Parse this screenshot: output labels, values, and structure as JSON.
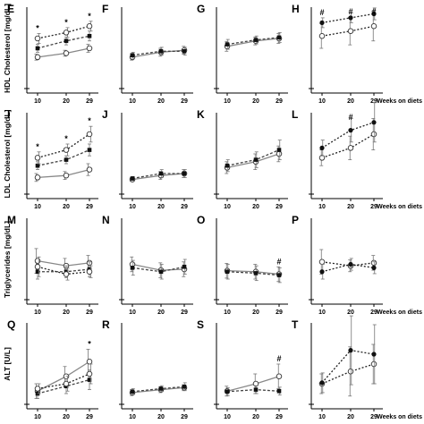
{
  "figure": {
    "x_axis_label": "Weeks on diets",
    "x_ticks": [
      "10",
      "20",
      "29"
    ],
    "series_styles": {
      "a": {
        "line": "#888888",
        "dash": "none",
        "marker": "circle-open"
      },
      "b": {
        "line": "#444444",
        "dash": "3,2",
        "marker": "square-filled"
      },
      "c": {
        "line": "#222222",
        "dash": "2,2",
        "marker": "circle-open"
      },
      "d": {
        "line": "#222222",
        "dash": "2,2",
        "marker": "circle-filled"
      }
    }
  },
  "chart_data": [
    {
      "panel": "E",
      "row": "HDL Cholesterol [mg/dL]",
      "type": "line",
      "x": [
        10,
        20,
        29
      ],
      "ylim": [
        0,
        160
      ],
      "series": [
        {
          "style": "a",
          "values": [
            62,
            70,
            80
          ],
          "err": [
            6,
            6,
            8
          ]
        },
        {
          "style": "b",
          "values": [
            80,
            95,
            105
          ],
          "err": [
            8,
            8,
            10
          ]
        },
        {
          "style": "c",
          "values": [
            100,
            112,
            125
          ],
          "err": [
            10,
            10,
            10
          ]
        }
      ],
      "annotations": [
        {
          "x": 10,
          "text": "*"
        },
        {
          "x": 20,
          "text": "*"
        },
        {
          "x": 29,
          "text": "*"
        }
      ]
    },
    {
      "panel": "F",
      "row": "HDL Cholesterol [mg/dL]",
      "type": "line",
      "x": [
        10,
        20,
        29
      ],
      "ylim": [
        0,
        160
      ],
      "series": [
        {
          "style": "a",
          "values": [
            62,
            72,
            76
          ],
          "err": [
            6,
            8,
            8
          ]
        },
        {
          "style": "b",
          "values": [
            66,
            74,
            74
          ],
          "err": [
            6,
            8,
            8
          ]
        }
      ],
      "annotations": []
    },
    {
      "panel": "G",
      "row": "HDL Cholesterol [mg/dL]",
      "type": "line",
      "x": [
        10,
        20,
        29
      ],
      "ylim": [
        0,
        160
      ],
      "series": [
        {
          "style": "a",
          "values": [
            84,
            95,
            100
          ],
          "err": [
            10,
            8,
            10
          ]
        },
        {
          "style": "b",
          "values": [
            88,
            97,
            102
          ],
          "err": [
            10,
            8,
            10
          ]
        }
      ],
      "annotations": []
    },
    {
      "panel": "H",
      "row": "HDL Cholesterol [mg/dL]",
      "type": "line",
      "x": [
        10,
        20,
        29
      ],
      "ylim": [
        0,
        160
      ],
      "series": [
        {
          "style": "c",
          "values": [
            105,
            115,
            125
          ],
          "err": [
            25,
            28,
            30
          ]
        },
        {
          "style": "d",
          "values": [
            132,
            142,
            150
          ],
          "err": [
            10,
            10,
            12
          ]
        }
      ],
      "annotations": [
        {
          "x": 10,
          "text": "#"
        },
        {
          "x": 20,
          "text": "#"
        },
        {
          "x": 29,
          "text": "#"
        }
      ]
    },
    {
      "panel": "I",
      "row": "LDL Cholesterol [mg/dL]",
      "type": "line",
      "x": [
        10,
        20,
        29
      ],
      "ylim": [
        0,
        40
      ],
      "series": [
        {
          "style": "a",
          "values": [
            8,
            9,
            12
          ],
          "err": [
            2,
            2,
            3
          ]
        },
        {
          "style": "b",
          "values": [
            14,
            17,
            22
          ],
          "err": [
            2,
            2,
            3
          ]
        },
        {
          "style": "c",
          "values": [
            18,
            22,
            30
          ],
          "err": [
            3,
            3,
            4
          ]
        }
      ],
      "annotations": [
        {
          "x": 10,
          "text": "*"
        },
        {
          "x": 20,
          "text": "*"
        },
        {
          "x": 29,
          "text": "*"
        }
      ]
    },
    {
      "panel": "J",
      "row": "LDL Cholesterol [mg/dL]",
      "type": "line",
      "x": [
        10,
        20,
        29
      ],
      "ylim": [
        0,
        40
      ],
      "series": [
        {
          "style": "a",
          "values": [
            7,
            9,
            10
          ],
          "err": [
            1,
            2,
            2
          ]
        },
        {
          "style": "b",
          "values": [
            7.5,
            10,
            10
          ],
          "err": [
            1,
            2,
            2
          ]
        }
      ],
      "annotations": []
    },
    {
      "panel": "K",
      "row": "LDL Cholesterol [mg/dL]",
      "type": "line",
      "x": [
        10,
        20,
        29
      ],
      "ylim": [
        0,
        40
      ],
      "series": [
        {
          "style": "a",
          "values": [
            13,
            16,
            20
          ],
          "err": [
            3,
            4,
            4
          ]
        },
        {
          "style": "b",
          "values": [
            14,
            17,
            22
          ],
          "err": [
            3,
            4,
            5
          ]
        }
      ],
      "annotations": []
    },
    {
      "panel": "L",
      "row": "LDL Cholesterol [mg/dL]",
      "type": "line",
      "x": [
        10,
        20,
        29
      ],
      "ylim": [
        0,
        40
      ],
      "series": [
        {
          "style": "c",
          "values": [
            18,
            23,
            30
          ],
          "err": [
            4,
            6,
            8
          ]
        },
        {
          "style": "d",
          "values": [
            23,
            32,
            36
          ],
          "err": [
            4,
            6,
            10
          ]
        }
      ],
      "annotations": [
        {
          "x": 20,
          "text": "#"
        }
      ]
    },
    {
      "panel": "M",
      "row": "Triglycerides [mg/dL]",
      "type": "line",
      "x": [
        10,
        20,
        29
      ],
      "ylim": [
        0,
        160
      ],
      "series": [
        {
          "style": "a",
          "values": [
            77,
            67,
            73
          ],
          "err": [
            25,
            15,
            15
          ]
        },
        {
          "style": "b",
          "values": [
            55,
            55,
            60
          ],
          "err": [
            15,
            12,
            15
          ]
        },
        {
          "style": "c",
          "values": [
            65,
            50,
            55
          ],
          "err": [
            20,
            12,
            12
          ]
        }
      ],
      "annotations": []
    },
    {
      "panel": "N",
      "row": "Triglycerides [mg/dL]",
      "type": "line",
      "x": [
        10,
        20,
        29
      ],
      "ylim": [
        0,
        160
      ],
      "series": [
        {
          "style": "a",
          "values": [
            70,
            58,
            60
          ],
          "err": [
            15,
            15,
            15
          ]
        },
        {
          "style": "b",
          "values": [
            63,
            55,
            65
          ],
          "err": [
            15,
            15,
            15
          ]
        }
      ],
      "annotations": []
    },
    {
      "panel": "O",
      "row": "Triglycerides [mg/dL]",
      "type": "line",
      "x": [
        10,
        20,
        29
      ],
      "ylim": [
        0,
        160
      ],
      "series": [
        {
          "style": "a",
          "values": [
            57,
            55,
            50
          ],
          "err": [
            15,
            15,
            15
          ]
        },
        {
          "style": "b",
          "values": [
            55,
            52,
            48
          ],
          "err": [
            15,
            15,
            15
          ]
        }
      ],
      "annotations": [
        {
          "x": 29,
          "text": "#"
        }
      ]
    },
    {
      "panel": "P",
      "row": "Triglycerides [mg/dL]",
      "type": "line",
      "x": [
        10,
        20,
        29
      ],
      "ylim": [
        0,
        160
      ],
      "series": [
        {
          "style": "c",
          "values": [
            75,
            67,
            73
          ],
          "err": [
            25,
            12,
            15
          ]
        },
        {
          "style": "d",
          "values": [
            55,
            70,
            63
          ],
          "err": [
            15,
            12,
            12
          ]
        }
      ],
      "annotations": []
    },
    {
      "panel": "Q",
      "row": "ALT [U/L]",
      "type": "line",
      "x": [
        10,
        20,
        29
      ],
      "ylim": [
        0,
        160
      ],
      "series": [
        {
          "style": "a",
          "values": [
            25,
            55,
            85
          ],
          "err": [
            15,
            20,
            25
          ]
        },
        {
          "style": "b",
          "values": [
            20,
            35,
            48
          ],
          "err": [
            10,
            15,
            20
          ]
        },
        {
          "style": "c",
          "values": [
            30,
            40,
            60
          ],
          "err": [
            10,
            15,
            20
          ]
        }
      ],
      "annotations": [
        {
          "x": 29,
          "text": "*"
        }
      ]
    },
    {
      "panel": "R",
      "row": "ALT [U/L]",
      "type": "line",
      "x": [
        10,
        20,
        29
      ],
      "ylim": [
        0,
        160
      ],
      "series": [
        {
          "style": "a",
          "values": [
            22,
            28,
            32
          ],
          "err": [
            6,
            6,
            6
          ]
        },
        {
          "style": "b",
          "values": [
            24,
            30,
            34
          ],
          "err": [
            6,
            6,
            8
          ]
        }
      ],
      "annotations": []
    },
    {
      "panel": "S",
      "row": "ALT [U/L]",
      "type": "line",
      "x": [
        10,
        20,
        29
      ],
      "ylim": [
        0,
        160
      ],
      "series": [
        {
          "style": "a",
          "values": [
            25,
            40,
            55
          ],
          "err": [
            10,
            20,
            25
          ]
        },
        {
          "style": "b",
          "values": [
            24,
            28,
            25
          ],
          "err": [
            8,
            8,
            8
          ]
        }
      ],
      "annotations": [
        {
          "x": 29,
          "text": "#"
        }
      ]
    },
    {
      "panel": "T",
      "row": "ALT [U/L]",
      "type": "line",
      "x": [
        10,
        20,
        29
      ],
      "ylim": [
        0,
        160
      ],
      "series": [
        {
          "style": "c",
          "values": [
            40,
            65,
            80
          ],
          "err": [
            20,
            50,
            40
          ]
        },
        {
          "style": "d",
          "values": [
            42,
            108,
            100
          ],
          "err": [
            20,
            70,
            60
          ]
        }
      ],
      "annotations": []
    }
  ]
}
